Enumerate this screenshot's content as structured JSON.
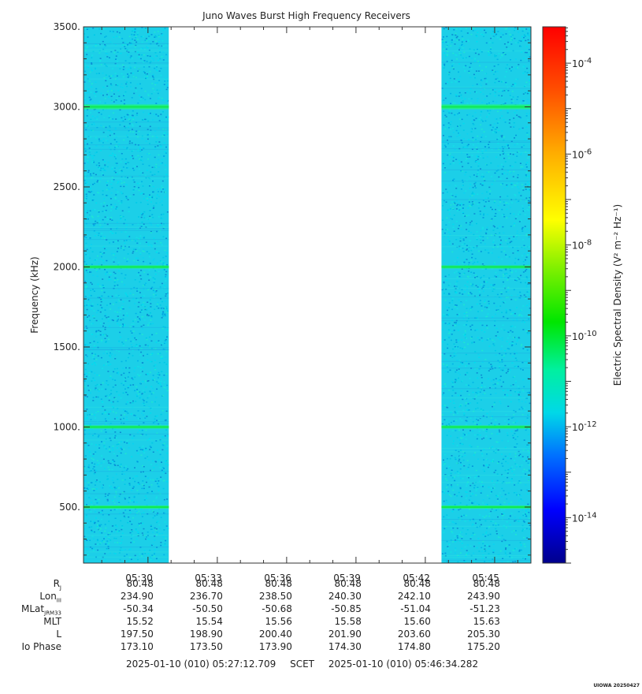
{
  "chart_data": {
    "type": "heatmap",
    "title": "Juno Waves Burst High Frequency Receivers",
    "ylabel": "Frequency (kHz)",
    "ylim": [
      150,
      3500
    ],
    "yticks": [
      500,
      1000,
      1500,
      2000,
      2500,
      3000,
      3500
    ],
    "ytick_labels": [
      "500.",
      "1000.",
      "1500.",
      "2000.",
      "2500.",
      "3000.",
      "3500."
    ],
    "xlim_minutes": [
      27.21,
      46.57
    ],
    "xticks_minutes": [
      30,
      33,
      36,
      39,
      42,
      45
    ],
    "xtick_labels": [
      "05:30",
      "05:33",
      "05:36",
      "05:39",
      "05:42",
      "05:45"
    ],
    "data_segments_minutes": [
      [
        27.21,
        30.9
      ],
      [
        42.7,
        46.57
      ]
    ],
    "emission_lines_khz": [
      500,
      1000,
      2000,
      3000
    ],
    "background_level": "1e-12",
    "colorbar": {
      "label": "Electric Spectral Density (V² m⁻² Hz⁻¹)",
      "log_min": -15,
      "log_max": -3.2,
      "tick_exponents": [
        -4,
        -6,
        -8,
        -10,
        -12,
        -14
      ],
      "tick_labels": [
        "10",
        "10",
        "10",
        "10",
        "10",
        "10"
      ],
      "tick_superscripts": [
        "-4",
        "-6",
        "-8",
        "-10",
        "-12",
        "-14"
      ]
    }
  },
  "ephemeris": {
    "row_labels": [
      "R",
      "Lon",
      "MLat",
      "MLT",
      "L",
      "Io Phase"
    ],
    "row_subscripts": [
      "J",
      "III",
      "JRM33",
      "",
      "",
      ""
    ],
    "rows": [
      [
        "80.48",
        "80.48",
        "80.48",
        "80.48",
        "80.48",
        "80.48"
      ],
      [
        "234.90",
        "236.70",
        "238.50",
        "240.30",
        "242.10",
        "243.90"
      ],
      [
        "-50.34",
        "-50.50",
        "-50.68",
        "-50.85",
        "-51.04",
        "-51.23"
      ],
      [
        "15.52",
        "15.54",
        "15.56",
        "15.58",
        "15.60",
        "15.63"
      ],
      [
        "197.50",
        "198.90",
        "200.40",
        "201.90",
        "203.60",
        "205.30"
      ],
      [
        "173.10",
        "173.50",
        "173.90",
        "174.30",
        "174.80",
        "175.20"
      ]
    ]
  },
  "time_range": {
    "start": "2025-01-10 (010) 05:27:12.709",
    "frame": "SCET",
    "end": "2025-01-10 (010) 05:46:34.282"
  },
  "footnote": "UIOWA 20250427"
}
